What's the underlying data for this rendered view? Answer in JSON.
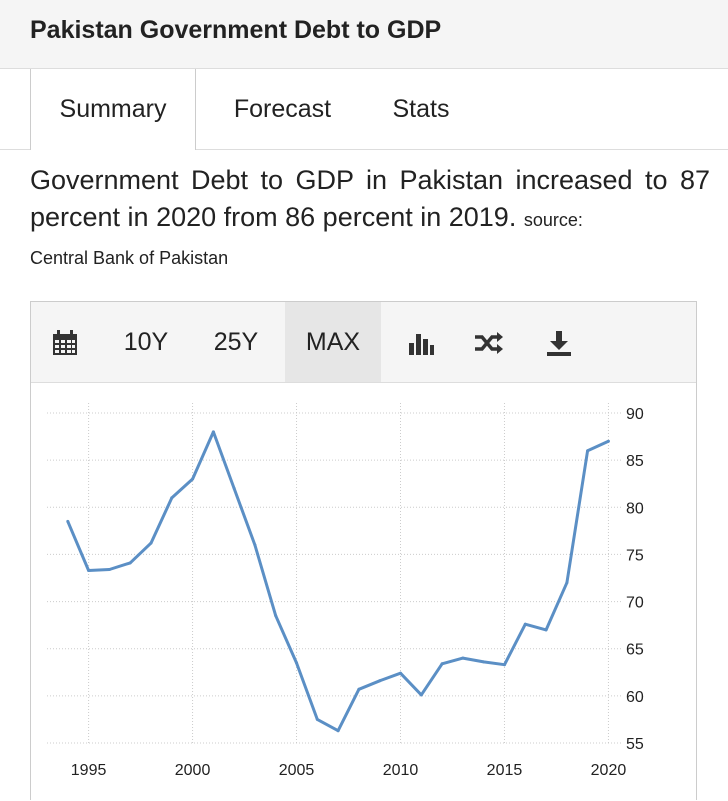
{
  "header": {
    "title": "Pakistan Government Debt to GDP"
  },
  "tabs": [
    {
      "label": "Summary"
    },
    {
      "label": "Forecast"
    },
    {
      "label": "Stats"
    }
  ],
  "description": {
    "text": "Government Debt to GDP in Pakistan increased to 87 percent in 2020 from 86 percent in 2019.",
    "source_label": "source:",
    "source_name": "Central Bank of Pakistan"
  },
  "toolbar": {
    "calendar_icon": "calendar-icon",
    "range_10y": "10Y",
    "range_25y": "25Y",
    "range_max": "MAX",
    "chart_type_icon": "bar-chart-icon",
    "compare_icon": "shuffle-icon",
    "download_icon": "download-icon"
  },
  "colors": {
    "line": "#5b8fc5",
    "grid": "#cccccc"
  },
  "chart_data": {
    "type": "line",
    "series": [
      {
        "x": [
          1994,
          1995,
          1996,
          1997,
          1998,
          1999,
          2000,
          2001,
          2002,
          2003,
          2004,
          2005,
          2006,
          2007,
          2008,
          2009,
          2010,
          2011,
          2012,
          2013,
          2014,
          2015,
          2016,
          2017,
          2018,
          2019,
          2020
        ],
        "values": [
          78.5,
          73.3,
          73.4,
          74.1,
          76.2,
          81.0,
          83.0,
          88.0,
          82.0,
          76.0,
          68.5,
          63.5,
          57.5,
          56.3,
          60.7,
          61.6,
          62.4,
          60.1,
          63.4,
          64.0,
          63.6,
          63.3,
          67.6,
          67.0,
          72.0,
          86.0,
          87.0
        ]
      }
    ],
    "x_ticks": [
      "1995",
      "2000",
      "2005",
      "2010",
      "2015",
      "2020"
    ],
    "y_ticks": [
      "55",
      "60",
      "65",
      "70",
      "75",
      "80",
      "85",
      "90"
    ],
    "xlim": [
      1993,
      2020.7
    ],
    "ylim": [
      55,
      90
    ],
    "grid": true,
    "y_axis_side": "right"
  }
}
